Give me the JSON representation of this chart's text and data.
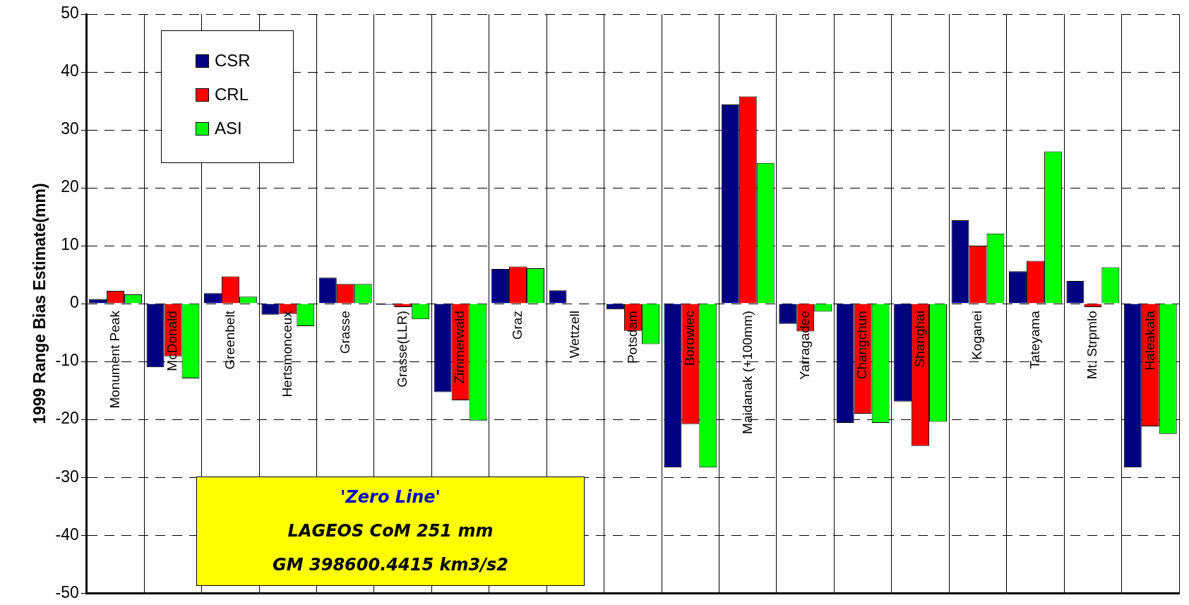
{
  "chart_data": {
    "type": "bar",
    "ylabel": "1999 Range Bias Estimate(mm)",
    "categories": [
      "Monument Peak",
      "McDonald",
      "Greenbelt",
      "Hertsmonceux",
      "Grasse",
      "Grasse(LLR)",
      "Zimmerwald",
      "Graz",
      "Wettzell",
      "Potsdam",
      "Borowiec",
      "Maidanak (+100mm)",
      "Yarragadee",
      "Changchun",
      "Shanghai",
      "Koganei",
      "Tateyama",
      "Mt. Strpmlo",
      "Haleakala"
    ],
    "series": [
      {
        "name": "CSR",
        "color": "#000080",
        "values": [
          0.8,
          -11,
          1.8,
          -1.9,
          4.5,
          -0.2,
          -15.3,
          6,
          2.3,
          -1,
          -28.3,
          34.4,
          -3.5,
          -20.6,
          -16.9,
          14.4,
          5.6,
          3.9,
          -28.3
        ]
      },
      {
        "name": "CRL",
        "color": "#ff0000",
        "values": [
          2.2,
          -9.1,
          4.7,
          -1.8,
          3.4,
          -0.6,
          -16.7,
          6.4,
          null,
          -4.7,
          -20.8,
          35.8,
          -4.8,
          -19,
          -24.6,
          10,
          7.4,
          -0.6,
          -21.2
        ]
      },
      {
        "name": "ASI",
        "color": "#00ff00",
        "values": [
          1.6,
          -12.9,
          1.2,
          -3.9,
          3.4,
          -2.7,
          -20.2,
          6.1,
          0,
          -7,
          -28.3,
          24.3,
          -1.4,
          -20.6,
          -20.4,
          12.1,
          26.3,
          6.3,
          -22.5
        ]
      }
    ],
    "ylim": [
      -50,
      50
    ],
    "yticks": [
      -50,
      -40,
      -30,
      -20,
      -10,
      0,
      10,
      20,
      30,
      40,
      50
    ],
    "grid": true,
    "legend": "top left",
    "annotations": [
      "'Zero Line'",
      "LAGEOS CoM 251 mm",
      "GM 398600.4415 km3/s2"
    ]
  }
}
